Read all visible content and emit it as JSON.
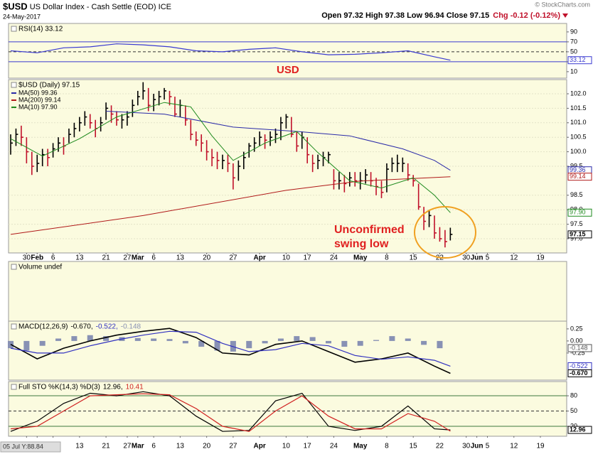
{
  "header": {
    "symbol": "$USD",
    "name": "US Dollar Index - Cash Settle (EOD) ICE",
    "date": "24-May-2017",
    "ohlc": "Open 97.32 High 97.38 Low 96.94 Close 97.15",
    "change": "Chg -0.12 (-0.12%)",
    "source": "© StockCharts.com",
    "footer": "05 Jul Y:88.84",
    "annotations": [
      "USD",
      "Unconfirmed",
      "swing low"
    ]
  },
  "chart_data": [
    {
      "type": "line",
      "label": "RSI(14) 33.12",
      "ylim": [
        -3,
        107
      ],
      "yticks": [
        90,
        70,
        50,
        30,
        10
      ],
      "bands": [
        30,
        70
      ],
      "midline": 50,
      "x": [
        0,
        5,
        10,
        15,
        20,
        25,
        30,
        35,
        40,
        45,
        50,
        55,
        60,
        65,
        70,
        75,
        80,
        83
      ],
      "series": [
        {
          "color": "#3a3ad0",
          "values": [
            52,
            48,
            58,
            60,
            66,
            64,
            60,
            52,
            50,
            55,
            58,
            50,
            44,
            45,
            48,
            52,
            40,
            33.12
          ]
        }
      ],
      "tags": [
        {
          "value": 33.12,
          "label": "33.12",
          "color": "#3a3ad0"
        }
      ]
    },
    {
      "type": "ohlc",
      "label": "$USD (Daily) 97.15",
      "ylim": [
        96.51,
        102.49
      ],
      "grid": true,
      "up_color": "#000000",
      "down_color": "#c0102a",
      "yticks": [
        {
          "value": 102,
          "label": "102.0"
        },
        101.5,
        {
          "value": 101,
          "label": "101.0"
        },
        100.5,
        {
          "value": 100,
          "label": "100.0"
        },
        99.5,
        98.5,
        {
          "value": 98,
          "label": "98.0"
        },
        97.5,
        {
          "value": 97,
          "label": "97.0"
        }
      ],
      "xticks": [
        {
          "value": 3,
          "label": "30"
        },
        {
          "value": 5,
          "label": "Feb"
        },
        {
          "value": 8,
          "label": "6"
        },
        {
          "value": 13,
          "label": "13"
        },
        {
          "value": 18,
          "label": "21"
        },
        {
          "value": 22,
          "label": "27"
        },
        {
          "value": 24,
          "label": "Mar"
        },
        {
          "value": 27,
          "label": "6"
        },
        {
          "value": 32,
          "label": "13"
        },
        {
          "value": 37,
          "label": "20"
        },
        {
          "value": 42,
          "label": "27"
        },
        {
          "value": 47,
          "label": "Apr"
        },
        {
          "value": 52,
          "label": "10"
        },
        {
          "value": 56,
          "label": "17"
        },
        {
          "value": 61,
          "label": "24"
        },
        {
          "value": 66,
          "label": "May"
        },
        {
          "value": 71,
          "label": "8"
        },
        {
          "value": 76,
          "label": "15"
        },
        {
          "value": 81,
          "label": "22"
        },
        {
          "value": 86,
          "label": "30"
        },
        {
          "value": 88,
          "label": "Jun"
        },
        {
          "value": 90,
          "label": "5"
        },
        {
          "value": 95,
          "label": "12"
        },
        {
          "value": 100,
          "label": "19"
        }
      ],
      "high": [
        100.6,
        100.8,
        100.9,
        100.5,
        100.0,
        99.9,
        100.1,
        100.1,
        100.3,
        100.5,
        100.5,
        100.8,
        101.0,
        101.2,
        101.4,
        101.3,
        101.1,
        101.2,
        101.7,
        101.6,
        101.4,
        101.3,
        101.4,
        101.8,
        102.1,
        102.4,
        102.2,
        102.0,
        102.1,
        102.2,
        102.1,
        101.9,
        101.8,
        101.6,
        101.1,
        100.7,
        100.6,
        100.4,
        100.1,
        100.0,
        99.9,
        99.9,
        99.6,
        99.7,
        100.0,
        100.3,
        100.5,
        100.7,
        100.6,
        100.7,
        100.8,
        101.2,
        101.3,
        101.2,
        100.7,
        100.7,
        100.5,
        99.9,
        99.9,
        100.0,
        100.0,
        99.4,
        99.3,
        99.2,
        99.3,
        99.3,
        99.3,
        99.4,
        99.3,
        99.1,
        99.0,
        99.6,
        99.8,
        99.9,
        99.8,
        99.6,
        99.2,
        98.9,
        98.1,
        98.0,
        97.8,
        97.4,
        97.3,
        97.38
      ],
      "low": [
        99.9,
        100.2,
        100.2,
        99.6,
        99.2,
        99.3,
        99.5,
        99.5,
        99.8,
        100.0,
        99.9,
        100.3,
        100.5,
        100.7,
        100.9,
        100.8,
        100.5,
        100.7,
        101.1,
        101.0,
        100.9,
        100.8,
        100.9,
        101.2,
        101.6,
        101.8,
        101.4,
        101.4,
        101.6,
        101.8,
        101.6,
        101.2,
        101.2,
        100.9,
        100.4,
        100.2,
        100.0,
        99.7,
        99.5,
        99.4,
        99.4,
        99.3,
        98.7,
        99.0,
        99.4,
        99.8,
        100.0,
        100.2,
        100.1,
        100.2,
        100.3,
        100.4,
        100.8,
        100.5,
        100.0,
        100.1,
        99.6,
        99.3,
        99.4,
        99.5,
        99.6,
        98.7,
        98.7,
        98.6,
        98.8,
        98.8,
        98.7,
        98.9,
        98.8,
        98.5,
        98.4,
        98.6,
        99.3,
        99.3,
        99.3,
        99.0,
        98.8,
        98.0,
        97.3,
        97.4,
        97.0,
        96.9,
        96.7,
        96.94
      ],
      "close": [
        100.3,
        100.6,
        100.5,
        100.0,
        99.5,
        99.6,
        99.9,
        99.8,
        100.1,
        100.3,
        100.2,
        100.6,
        100.8,
        101.0,
        101.2,
        101.0,
        100.8,
        101.0,
        101.5,
        101.3,
        101.1,
        101.1,
        101.2,
        101.6,
        101.9,
        102.1,
        101.6,
        101.8,
        101.9,
        102.1,
        101.9,
        101.3,
        101.6,
        101.1,
        100.6,
        100.4,
        100.3,
        100.0,
        99.8,
        99.7,
        99.7,
        99.6,
        99.1,
        99.5,
        99.8,
        100.2,
        100.3,
        100.5,
        100.4,
        100.5,
        100.6,
        101.0,
        101.2,
        100.6,
        100.2,
        100.5,
        99.9,
        99.6,
        99.7,
        99.8,
        99.9,
        99.0,
        99.0,
        98.9,
        99.1,
        99.0,
        99.0,
        99.2,
        99.0,
        98.8,
        98.6,
        99.4,
        99.6,
        99.6,
        99.6,
        99.2,
        99.0,
        98.1,
        97.6,
        97.8,
        97.2,
        97.0,
        96.9,
        97.15
      ],
      "series": [
        {
          "name": "MA(50) 99.36",
          "color": "#2a2aa8",
          "x": [
            18,
            29,
            42,
            54,
            64,
            74,
            80,
            83
          ],
          "values": [
            101.4,
            101.3,
            100.85,
            100.7,
            100.55,
            100.1,
            99.7,
            99.36
          ]
        },
        {
          "name": "MA(200) 99.14",
          "color": "#b01818",
          "x": [
            0,
            25,
            52,
            66,
            83
          ],
          "values": [
            97.15,
            97.8,
            98.67,
            98.99,
            99.14
          ]
        },
        {
          "name": "MA(10) 97.90",
          "color": "#1e8a1e",
          "x": [
            0,
            6,
            13,
            20,
            29,
            34,
            38,
            42,
            48,
            54,
            58,
            64,
            70,
            76,
            80,
            83
          ],
          "values": [
            100.45,
            99.85,
            100.45,
            101.2,
            101.7,
            101.55,
            100.55,
            99.7,
            100.3,
            100.7,
            99.97,
            99.0,
            98.75,
            99.1,
            98.5,
            97.9
          ]
        }
      ],
      "tags": [
        {
          "value": 99.36,
          "label": "99.36",
          "color": "#2a2aa8"
        },
        {
          "value": 99.14,
          "label": "99.14",
          "color": "#b01818"
        },
        {
          "value": 97.9,
          "label": "97.90",
          "color": "#1e8a1e"
        },
        {
          "value": 97.15,
          "label": "97.15",
          "color": "#000000"
        }
      ]
    },
    {
      "type": "volume",
      "label": "Volume undef"
    },
    {
      "type": "macd",
      "label": "MACD(12,26,9)",
      "ylim": [
        -0.81,
        0.41
      ],
      "yticks": [
        0.25,
        {
          "value": 0,
          "label": "0.00"
        },
        -0.25
      ],
      "x": [
        0,
        5,
        10,
        15,
        20,
        25,
        30,
        35,
        40,
        45,
        50,
        55,
        60,
        65,
        70,
        75,
        80,
        83
      ],
      "series": [
        {
          "name": "-0.670,",
          "color": "#000000",
          "values": [
            -0.07,
            -0.37,
            -0.15,
            0.0,
            0.12,
            0.2,
            0.26,
            0.07,
            -0.25,
            -0.29,
            -0.07,
            0.0,
            -0.22,
            -0.44,
            -0.37,
            -0.25,
            -0.52,
            -0.67
          ]
        },
        {
          "name": "-0.522,",
          "color": "#3030c0",
          "values": [
            -0.15,
            -0.25,
            -0.25,
            -0.1,
            0.02,
            0.12,
            0.2,
            0.18,
            -0.05,
            -0.22,
            -0.18,
            -0.05,
            -0.1,
            -0.3,
            -0.38,
            -0.33,
            -0.4,
            -0.522
          ]
        }
      ],
      "histogram": {
        "name": "-0.148",
        "color": "#8891b4",
        "x": [
          0,
          3,
          6,
          9,
          12,
          15,
          18,
          21,
          24,
          27,
          30,
          33,
          36,
          39,
          42,
          45,
          48,
          51,
          54,
          57,
          60,
          63,
          66,
          69,
          72,
          75,
          78,
          81
        ],
        "values": [
          -0.15,
          -0.2,
          -0.1,
          0.05,
          0.1,
          0.12,
          0.1,
          0.08,
          0.06,
          0.05,
          0.04,
          -0.05,
          -0.12,
          -0.2,
          -0.22,
          -0.15,
          -0.05,
          0.05,
          0.1,
          0.08,
          -0.05,
          -0.12,
          -0.1,
          0.02,
          0.1,
          0.05,
          -0.08,
          -0.15
        ]
      },
      "tags": [
        {
          "value": -0.148,
          "label": "-0.148",
          "color": "#555555"
        },
        {
          "value": -0.522,
          "label": "-0.522",
          "color": "#3030c0"
        },
        {
          "value": -0.67,
          "label": "-0.670",
          "color": "#000000"
        }
      ]
    },
    {
      "type": "line",
      "label": "Full STO %K(14,3) %D(3)",
      "ylim": [
        0.5,
        108
      ],
      "yticks": [
        80,
        50,
        20
      ],
      "bands": [
        20,
        80
      ],
      "midline": 50,
      "x": [
        0,
        5,
        10,
        15,
        20,
        25,
        30,
        35,
        40,
        45,
        50,
        55,
        60,
        65,
        70,
        75,
        80,
        83
      ],
      "series": [
        {
          "name": "12.96,",
          "color": "#000000",
          "values": [
            10,
            30,
            65,
            85,
            80,
            88,
            80,
            40,
            10,
            12,
            70,
            85,
            20,
            12,
            20,
            60,
            15,
            12.96
          ]
        },
        {
          "name": "10.41",
          "color": "#d02020",
          "values": [
            15,
            20,
            50,
            80,
            82,
            84,
            82,
            55,
            20,
            10,
            50,
            80,
            40,
            15,
            15,
            45,
            30,
            10.41
          ]
        }
      ],
      "xticks": [
        {
          "value": 3,
          "label": "30"
        },
        {
          "value": 5,
          "label": "Feb"
        },
        {
          "value": 8,
          "label": "6"
        },
        {
          "value": 13,
          "label": "13"
        },
        {
          "value": 18,
          "label": "21"
        },
        {
          "value": 22,
          "label": "27"
        },
        {
          "value": 24,
          "label": "Mar"
        },
        {
          "value": 27,
          "label": "6"
        },
        {
          "value": 32,
          "label": "13"
        },
        {
          "value": 37,
          "label": "20"
        },
        {
          "value": 42,
          "label": "27"
        },
        {
          "value": 47,
          "label": "Apr"
        },
        {
          "value": 52,
          "label": "10"
        },
        {
          "value": 56,
          "label": "17"
        },
        {
          "value": 61,
          "label": "24"
        },
        {
          "value": 66,
          "label": "May"
        },
        {
          "value": 71,
          "label": "8"
        },
        {
          "value": 76,
          "label": "15"
        },
        {
          "value": 81,
          "label": "22"
        },
        {
          "value": 86,
          "label": "30"
        },
        {
          "value": 88,
          "label": "Jun"
        },
        {
          "value": 90,
          "label": "5"
        },
        {
          "value": 95,
          "label": "12"
        },
        {
          "value": 100,
          "label": "19"
        }
      ],
      "tags": [
        {
          "value": 12.96,
          "label": "12.96",
          "color": "#000000"
        }
      ]
    }
  ]
}
